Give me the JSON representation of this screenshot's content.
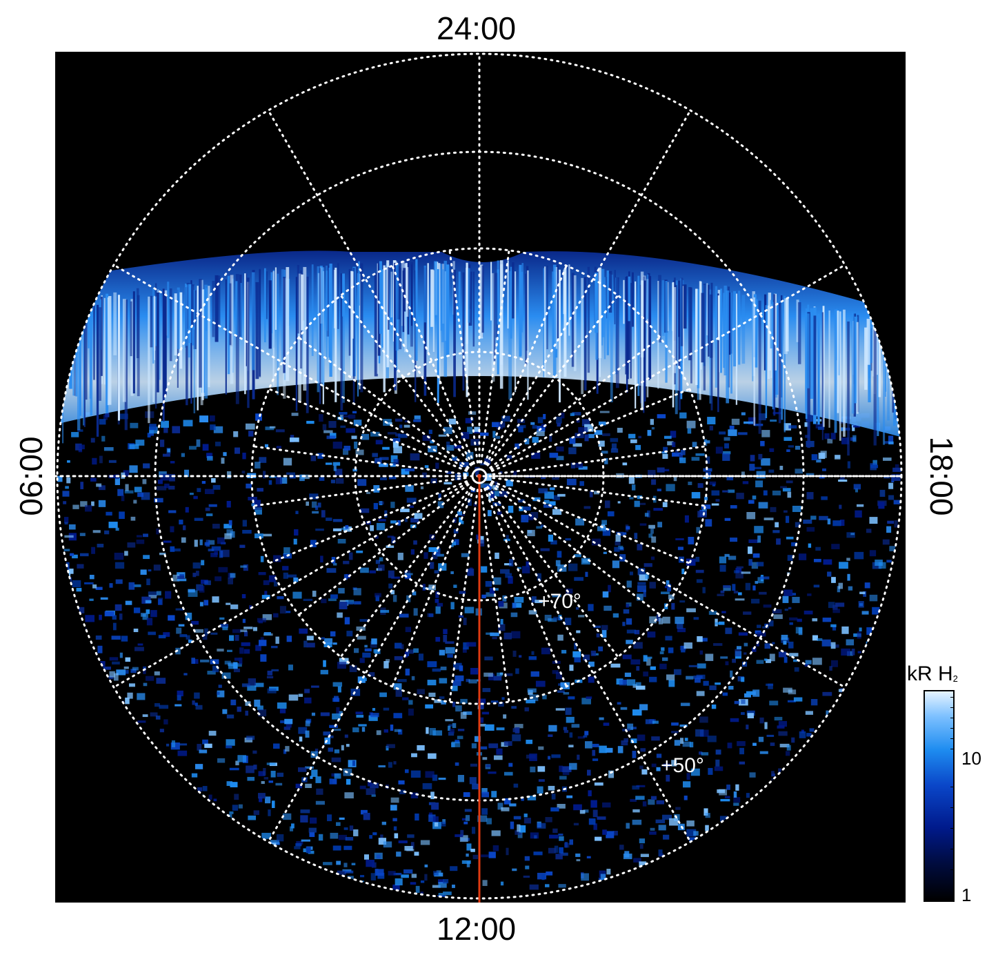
{
  "labels": {
    "top": "24:00",
    "bottom": "12:00",
    "left": "06:00",
    "right": "18:00"
  },
  "latitude_labels": {
    "lat70": "+70°",
    "lat50": "+50°"
  },
  "colorbar": {
    "title_main": "kR H",
    "title_sub": "2",
    "tick_high": "10",
    "tick_low": "1"
  },
  "colors": {
    "background": "#000000",
    "grid": "#ffffff",
    "meridian_line": "#e03a10",
    "aurora_bright": "#cfe8ff",
    "aurora_mid": "#2a8cf0",
    "aurora_dark": "#0a2a90"
  }
}
